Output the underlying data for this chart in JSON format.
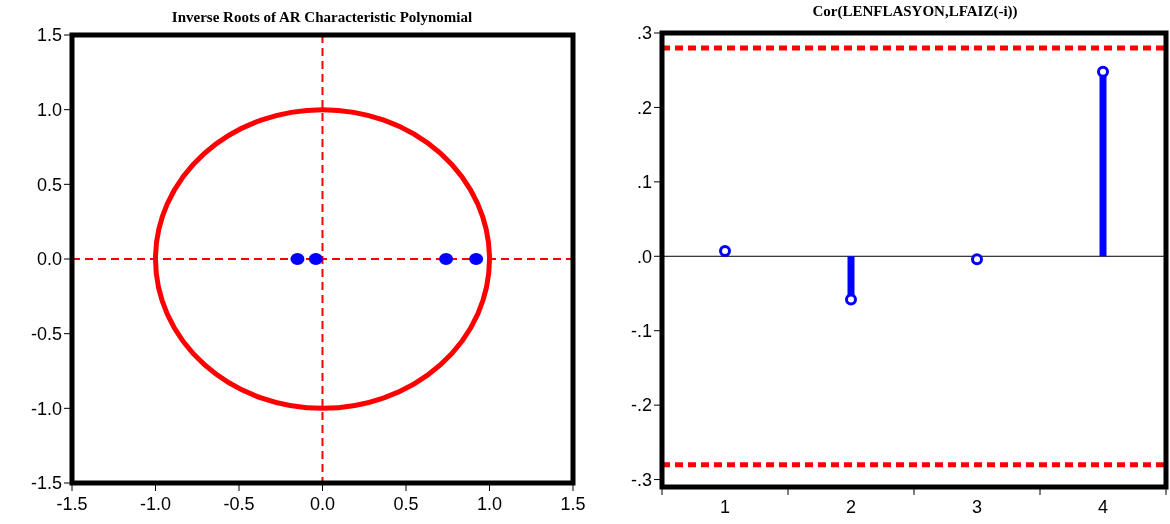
{
  "chart_data": [
    {
      "type": "scatter",
      "title": "Inverse Roots of AR Characteristic Polynomial",
      "xlim": [
        -1.5,
        1.5
      ],
      "ylim": [
        -1.5,
        1.5
      ],
      "xticks": [
        {
          "value": -1.5,
          "label": "-1.5"
        },
        {
          "value": -1,
          "label": "-1.0"
        },
        {
          "value": -0.5,
          "label": "-0.5"
        },
        {
          "value": 0,
          "label": "0.0"
        },
        {
          "value": 0.5,
          "label": "0.5"
        },
        {
          "value": 1,
          "label": "1.0"
        },
        {
          "value": 1.5,
          "label": "1.5"
        }
      ],
      "yticks": [
        {
          "value": -1.5,
          "label": "-1.5"
        },
        {
          "value": -1,
          "label": "-1.0"
        },
        {
          "value": -0.5,
          "label": "-0.5"
        },
        {
          "value": 0,
          "label": "0.0"
        },
        {
          "value": 0.5,
          "label": "0.5"
        },
        {
          "value": 1,
          "label": "1.0"
        },
        {
          "value": 1.5,
          "label": "1.5"
        }
      ],
      "series": [
        {
          "type": "scatter",
          "color": "#0000ff",
          "marker": "circle",
          "x": [
            -0.15,
            -0.04,
            0.74,
            0.92
          ],
          "values": [
            0,
            0,
            0,
            0
          ]
        }
      ],
      "ref_lines": [
        {
          "axis": "x",
          "value": 0,
          "color": "#ff0000",
          "line_style": "dashed"
        },
        {
          "axis": "y",
          "value": 0,
          "color": "#ff0000",
          "line_style": "dashed"
        }
      ]
    },
    {
      "type": "lollipop",
      "title": "Cor(LENFLASYON,LFAIZ(-i))",
      "categories": [
        "1",
        "2",
        "3",
        "4"
      ],
      "values": [
        0.007,
        -0.058,
        -0.004,
        0.248
      ],
      "color": "#0000ff",
      "ylim": [
        -0.31,
        0.3
      ],
      "yticks": [
        {
          "value": -0.3,
          "label": "-.3"
        },
        {
          "value": -0.2,
          "label": "-.2"
        },
        {
          "value": -0.1,
          "label": "-.1"
        },
        {
          "value": 0,
          "label": ".0"
        },
        {
          "value": 0.1,
          "label": ".1"
        },
        {
          "value": 0.2,
          "label": ".2"
        },
        {
          "value": 0.3,
          "label": ".3"
        }
      ],
      "ref_lines": [
        {
          "axis": "y",
          "value": 0.28,
          "color": "#ff0000",
          "line_style": "dashed"
        },
        {
          "axis": "y",
          "value": -0.28,
          "color": "#ff0000",
          "line_style": "dashed"
        },
        {
          "axis": "y",
          "value": 0,
          "color": "#000000",
          "line_style": "solid"
        }
      ]
    }
  ]
}
